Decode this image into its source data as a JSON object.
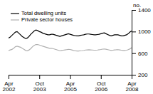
{
  "chart_data": {
    "type": "line",
    "y_label": "no.",
    "categories": [
      "Apr\n2002",
      null,
      null,
      null,
      null,
      null,
      null,
      null,
      null,
      null,
      null,
      null,
      null,
      null,
      null,
      null,
      null,
      null,
      "Oct\n2003",
      null,
      null,
      null,
      null,
      null,
      null,
      null,
      null,
      null,
      null,
      null,
      null,
      null,
      null,
      null,
      null,
      null,
      "Apr\n2005",
      null,
      null,
      null,
      null,
      null,
      null,
      null,
      null,
      null,
      null,
      null,
      null,
      null,
      null,
      null,
      null,
      null,
      "Oct\n2006",
      null,
      null,
      null,
      null,
      null,
      null,
      null,
      null,
      null,
      null,
      null,
      null,
      null,
      null,
      null,
      null,
      null,
      "Apr\n2008"
    ],
    "series": [
      {
        "name": "Total dwelling units",
        "color": "#000000",
        "values": [
          880,
          900,
          930,
          960,
          990,
          1000,
          970,
          940,
          910,
          890,
          870,
          880,
          910,
          950,
          980,
          1010,
          1030,
          1020,
          1000,
          990,
          970,
          960,
          950,
          940,
          940,
          950,
          950,
          940,
          930,
          920,
          910,
          920,
          930,
          940,
          950,
          960,
          950,
          940,
          930,
          925,
          920,
          920,
          930,
          935,
          940,
          950,
          955,
          955,
          950,
          945,
          940,
          940,
          945,
          950,
          960,
          970,
          975,
          960,
          945,
          930,
          920,
          930,
          940,
          940,
          940,
          930,
          920,
          920,
          930,
          940,
          960,
          990,
          1010
        ]
      },
      {
        "name": "Private sector houses",
        "color": "#b0b0b0",
        "values": [
          650,
          660,
          670,
          690,
          720,
          730,
          720,
          710,
          690,
          670,
          650,
          645,
          660,
          685,
          720,
          745,
          760,
          760,
          750,
          740,
          730,
          720,
          710,
          700,
          690,
          690,
          685,
          675,
          665,
          655,
          645,
          650,
          655,
          660,
          665,
          670,
          668,
          660,
          650,
          645,
          640,
          640,
          645,
          648,
          652,
          658,
          660,
          662,
          660,
          658,
          655,
          655,
          658,
          662,
          668,
          675,
          678,
          672,
          665,
          658,
          650,
          655,
          660,
          662,
          665,
          660,
          655,
          650,
          650,
          655,
          665,
          680,
          700
        ]
      }
    ],
    "ylim": [
      200,
      1400
    ],
    "yticks": [
      200,
      600,
      1000,
      1400
    ],
    "grid": false,
    "legend": "upper-left"
  }
}
